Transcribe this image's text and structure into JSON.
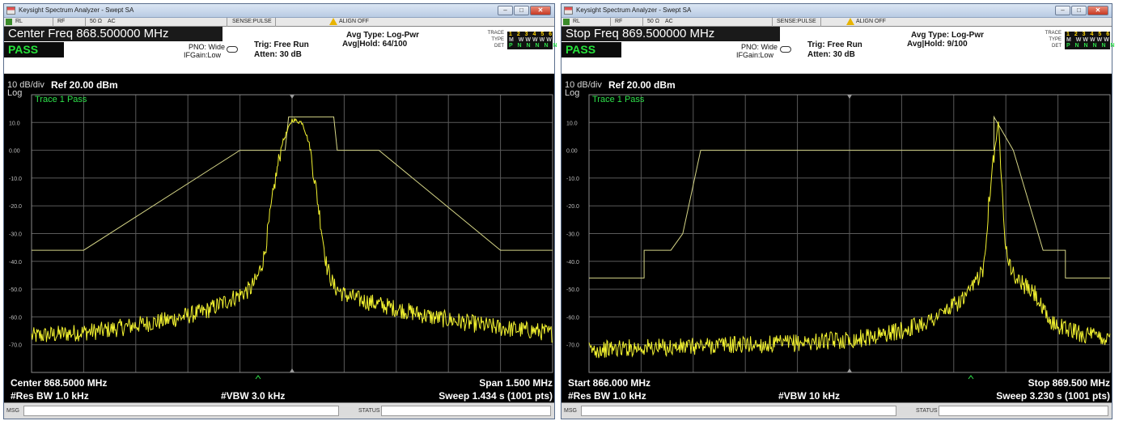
{
  "windows": [
    {
      "title": "Keysight Spectrum Analyzer - Swept SA",
      "window_buttons": [
        "minimize-icon",
        "maximize-icon",
        "close-icon"
      ],
      "status": {
        "rl": "RL",
        "rf": "RF",
        "ohm": "50 Ω",
        "ac": "AC",
        "sense": "SENSE:PULSE",
        "align": "ALIGN OFF"
      },
      "freq_label": "Center Freq 868.500000 MHz",
      "pass_label": "PASS",
      "pno": "PNO: Wide",
      "ifgain": "IFGain:Low",
      "trig": "Trig: Free Run",
      "atten": "Atten: 30 dB",
      "avg_type": "Avg Type: Log-Pwr",
      "avg_hold": "Avg|Hold: 64/100",
      "trace_label": "TRACE",
      "trace_nums": "1 2 3 4 5 6",
      "type_label": "TYPE",
      "type_vals": "M WWWWW",
      "det_label": "DET",
      "det_vals": "P N N N N N",
      "scale": "10 dB/div",
      "log": "Log",
      "ref": "Ref 20.00 dBm",
      "trace_msg": "Trace 1 Pass",
      "yticks": [
        "10.0",
        "0.00",
        "-10.0",
        "-20.0",
        "-30.0",
        "-40.0",
        "-50.0",
        "-60.0",
        "-70.0"
      ],
      "foot_left1": "Center 868.5000 MHz",
      "foot_left2": "#Res BW 1.0 kHz",
      "foot_mid": "#VBW 3.0 kHz",
      "foot_right1": "Span 1.500 MHz",
      "foot_right2": "Sweep  1.434 s (1001 pts)",
      "msg": "MSG",
      "status_label": "STATUS"
    },
    {
      "title": "Keysight Spectrum Analyzer - Swept SA",
      "window_buttons": [
        "minimize-icon",
        "maximize-icon",
        "close-icon"
      ],
      "status": {
        "rl": "RL",
        "rf": "RF",
        "ohm": "50 Ω",
        "ac": "AC",
        "sense": "SENSE:PULSE",
        "align": "ALIGN OFF"
      },
      "freq_label": "Stop Freq 869.500000 MHz",
      "pass_label": "PASS",
      "pno": "PNO: Wide",
      "ifgain": "IFGain:Low",
      "trig": "Trig: Free Run",
      "atten": "Atten: 30 dB",
      "avg_type": "Avg Type: Log-Pwr",
      "avg_hold": "Avg|Hold: 9/100",
      "trace_label": "TRACE",
      "trace_nums": "1 2 3 4 5 6",
      "type_label": "TYPE",
      "type_vals": "M WWWWW",
      "det_label": "DET",
      "det_vals": "P N N N N N",
      "scale": "10 dB/div",
      "log": "Log",
      "ref": "Ref 20.00 dBm",
      "trace_msg": "Trace 1 Pass",
      "yticks": [
        "10.0",
        "0.00",
        "-10.0",
        "-20.0",
        "-30.0",
        "-40.0",
        "-50.0",
        "-60.0",
        "-70.0"
      ],
      "foot_left1": "Start 866.000 MHz",
      "foot_left2": "#Res BW 1.0 kHz",
      "foot_mid": "#VBW 10 kHz",
      "foot_right1": "Stop 869.500 MHz",
      "foot_right2": "Sweep  3.230 s (1001 pts)",
      "msg": "MSG",
      "status_label": "STATUS"
    }
  ],
  "colors": {
    "trace": "#f2f230",
    "limit": "#d4d486",
    "grid": "#5a5a5a",
    "pass": "#26e23a",
    "trace_msg": "#2ee04a"
  },
  "chart_data": [
    {
      "type": "line",
      "title": "",
      "xlabel": "",
      "ylabel": "",
      "x_unit": "MHz",
      "y_unit": "dBm",
      "x_range": [
        867.75,
        869.25
      ],
      "ylim": [
        -80,
        20
      ],
      "grid": true,
      "series": [
        {
          "x": [
            867.75,
            867.85,
            867.95,
            868.05,
            868.15,
            868.25,
            868.3,
            868.35,
            868.38,
            868.4,
            868.42,
            868.45,
            868.47,
            868.5,
            868.53,
            868.55,
            868.57,
            868.6,
            868.62,
            868.65,
            868.7,
            868.8,
            868.9,
            869.0,
            869.1,
            869.2,
            869.25
          ],
          "y": [
            -67,
            -66,
            -65,
            -63,
            -61,
            -58,
            -55,
            -52,
            -50,
            -46,
            -38,
            -12,
            2,
            11,
            10,
            2,
            -15,
            -42,
            -49,
            -52,
            -54,
            -57,
            -60,
            -62,
            -64,
            -65,
            -66
          ]
        }
      ],
      "limit_line": {
        "x": [
          867.75,
          867.9,
          868.35,
          868.48,
          868.49,
          868.62,
          868.63,
          868.75,
          869.1,
          869.25
        ],
        "y": [
          -36,
          -36,
          0,
          0,
          12,
          12,
          0,
          0,
          -36,
          -36
        ]
      }
    },
    {
      "type": "line",
      "title": "",
      "xlabel": "",
      "ylabel": "",
      "x_unit": "MHz",
      "y_unit": "dBm",
      "x_range": [
        866.0,
        869.5
      ],
      "ylim": [
        -80,
        20
      ],
      "grid": true,
      "series": [
        {
          "x": [
            866.0,
            866.3,
            866.6,
            866.9,
            867.2,
            867.5,
            867.8,
            868.1,
            868.3,
            868.45,
            868.55,
            868.65,
            868.7,
            868.75,
            868.8,
            868.85,
            868.95,
            869.0,
            869.05,
            869.1,
            869.2,
            869.3,
            869.4,
            869.5
          ],
          "y": [
            -72,
            -71,
            -71,
            -70,
            -70,
            -69,
            -68,
            -65,
            -61,
            -56,
            -52,
            -42,
            -10,
            10,
            -35,
            -45,
            -50,
            -52,
            -58,
            -62,
            -64,
            -66,
            -67,
            -68
          ]
        }
      ],
      "limit_line": {
        "x": [
          866.0,
          866.37,
          866.37,
          866.55,
          866.55,
          866.63,
          866.63,
          866.75,
          868.72,
          868.72,
          868.85,
          869.05,
          869.05,
          869.2,
          869.2,
          869.5
        ],
        "y": [
          -46,
          -46,
          -36,
          -36,
          -36,
          -30,
          -30,
          0,
          0,
          12,
          0,
          -36,
          -36,
          -36,
          -46,
          -46
        ]
      }
    }
  ]
}
